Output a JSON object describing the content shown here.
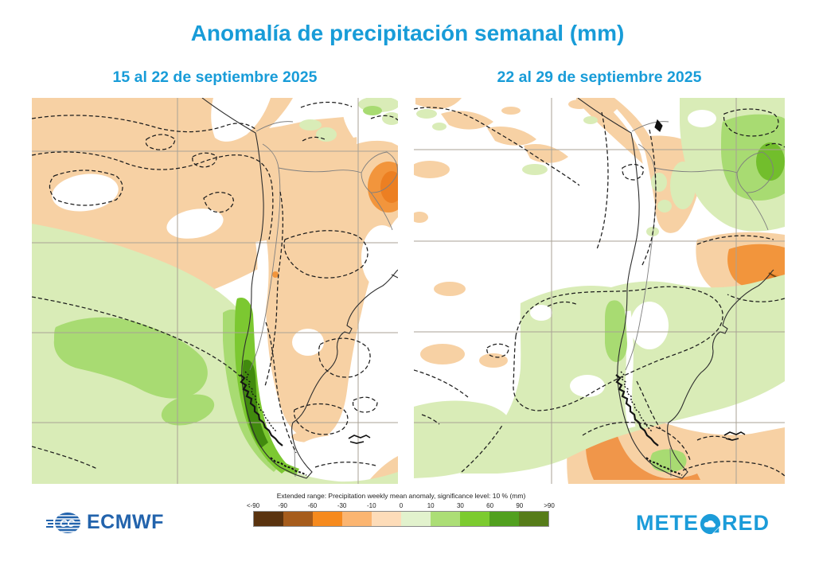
{
  "title": {
    "text": "Anomalía de precipitación semanal (mm)",
    "color": "#189cd8"
  },
  "panels": [
    {
      "subtitle": "15 al 22 de septiembre 2025"
    },
    {
      "subtitle": "22 al 29 de septiembre 2025"
    }
  ],
  "map": {
    "region": "southern South America",
    "fill_colors": {
      "weak_negative": "#f7d1a4",
      "moderate_negative": "#f2953c",
      "weak_positive": "#d9ecb7",
      "moderate_positive": "#a8db72",
      "strong_positive": "#7cc831",
      "very_strong_positive": "#418a0e"
    }
  },
  "footer": {
    "ecmwf_label": "ECMWF",
    "ecmwf_color": "#2263ac",
    "meteored": {
      "part1": "METE",
      "part2": "RED",
      "color": "#1c9cd9"
    },
    "legend": {
      "title": "Extended range: Precipitation weekly mean anomaly, significance level: 10 % (mm)",
      "tick_labels": [
        "<-90",
        "-90",
        "-60",
        "-30",
        "-10",
        "0",
        "10",
        "30",
        "60",
        "90",
        ">90"
      ],
      "colors": [
        "#5a330f",
        "#a65c1c",
        "#f68a1e",
        "#fbb571",
        "#fddcb9",
        "#e2f2cd",
        "#acde76",
        "#7ccb2f",
        "#51a01f",
        "#567c19"
      ]
    }
  }
}
